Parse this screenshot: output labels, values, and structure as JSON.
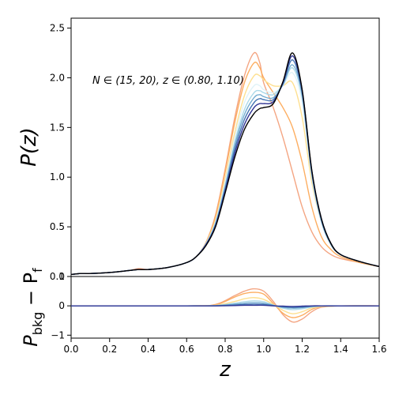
{
  "chart_data": [
    {
      "type": "line",
      "panel": "top",
      "annotation": "N ∈ (15, 20), z ∈ (0.80, 1.10)",
      "ylabel": "P(z)",
      "xlim": [
        0.0,
        1.6
      ],
      "ylim": [
        0.0,
        2.6
      ],
      "yticks": [
        "0.0",
        "0.5",
        "1.0",
        "1.5",
        "2.0",
        "2.5"
      ],
      "yticks_values": [
        0.0,
        0.5,
        1.0,
        1.5,
        2.0,
        2.5
      ],
      "x": [
        0.0,
        0.05,
        0.1,
        0.2,
        0.3,
        0.35,
        0.4,
        0.5,
        0.6,
        0.65,
        0.7,
        0.75,
        0.8,
        0.85,
        0.9,
        0.95,
        0.98,
        1.0,
        1.05,
        1.1,
        1.15,
        1.2,
        1.25,
        1.3,
        1.35,
        1.4,
        1.5,
        1.6
      ],
      "series": [
        {
          "color": "#f4a582",
          "values": [
            0.02,
            0.03,
            0.03,
            0.04,
            0.06,
            0.08,
            0.07,
            0.09,
            0.14,
            0.2,
            0.34,
            0.62,
            1.08,
            1.6,
            2.02,
            2.25,
            2.15,
            1.95,
            1.7,
            1.4,
            1.05,
            0.7,
            0.45,
            0.3,
            0.22,
            0.18,
            0.14,
            0.1
          ]
        },
        {
          "color": "#fdae61",
          "values": [
            0.02,
            0.03,
            0.03,
            0.04,
            0.06,
            0.07,
            0.07,
            0.09,
            0.14,
            0.2,
            0.34,
            0.6,
            1.05,
            1.55,
            1.95,
            2.15,
            2.1,
            2.0,
            1.85,
            1.7,
            1.5,
            1.15,
            0.7,
            0.4,
            0.27,
            0.2,
            0.14,
            0.1
          ]
        },
        {
          "color": "#fee090",
          "values": [
            0.02,
            0.03,
            0.03,
            0.04,
            0.06,
            0.07,
            0.07,
            0.09,
            0.14,
            0.2,
            0.33,
            0.57,
            0.98,
            1.45,
            1.82,
            2.02,
            2.02,
            1.98,
            1.92,
            1.92,
            1.95,
            1.6,
            0.95,
            0.55,
            0.32,
            0.22,
            0.15,
            0.1
          ]
        },
        {
          "color": "#e0f3f8",
          "values": [
            0.02,
            0.03,
            0.03,
            0.04,
            0.06,
            0.07,
            0.07,
            0.09,
            0.14,
            0.2,
            0.33,
            0.55,
            0.95,
            1.4,
            1.75,
            1.92,
            1.92,
            1.88,
            1.85,
            1.92,
            2.05,
            1.75,
            1.0,
            0.55,
            0.32,
            0.22,
            0.15,
            0.1
          ]
        },
        {
          "color": "#abd9e9",
          "values": [
            0.02,
            0.03,
            0.03,
            0.04,
            0.06,
            0.07,
            0.07,
            0.09,
            0.14,
            0.2,
            0.33,
            0.54,
            0.92,
            1.35,
            1.68,
            1.85,
            1.87,
            1.85,
            1.83,
            1.93,
            2.1,
            1.8,
            1.02,
            0.55,
            0.32,
            0.22,
            0.15,
            0.1
          ]
        },
        {
          "color": "#74add1",
          "values": [
            0.02,
            0.03,
            0.03,
            0.04,
            0.06,
            0.07,
            0.07,
            0.09,
            0.14,
            0.2,
            0.32,
            0.53,
            0.9,
            1.32,
            1.63,
            1.8,
            1.83,
            1.81,
            1.8,
            1.93,
            2.13,
            1.83,
            1.04,
            0.56,
            0.32,
            0.22,
            0.15,
            0.1
          ]
        },
        {
          "color": "#4575b4",
          "values": [
            0.02,
            0.03,
            0.03,
            0.04,
            0.06,
            0.07,
            0.07,
            0.09,
            0.14,
            0.2,
            0.32,
            0.52,
            0.88,
            1.28,
            1.58,
            1.75,
            1.79,
            1.78,
            1.78,
            1.94,
            2.18,
            1.85,
            1.05,
            0.57,
            0.33,
            0.22,
            0.15,
            0.1
          ]
        },
        {
          "color": "#313695",
          "values": [
            0.02,
            0.03,
            0.03,
            0.04,
            0.06,
            0.07,
            0.07,
            0.09,
            0.14,
            0.2,
            0.32,
            0.51,
            0.86,
            1.24,
            1.53,
            1.7,
            1.74,
            1.74,
            1.76,
            1.95,
            2.22,
            1.87,
            1.06,
            0.58,
            0.33,
            0.22,
            0.15,
            0.1
          ]
        },
        {
          "color": "#000000",
          "values": [
            0.02,
            0.03,
            0.03,
            0.04,
            0.06,
            0.07,
            0.07,
            0.09,
            0.14,
            0.2,
            0.31,
            0.5,
            0.84,
            1.2,
            1.48,
            1.64,
            1.69,
            1.7,
            1.74,
            1.96,
            2.25,
            1.88,
            1.07,
            0.58,
            0.33,
            0.22,
            0.15,
            0.1
          ]
        }
      ]
    },
    {
      "type": "line",
      "panel": "bottom",
      "xlabel": "z",
      "ylabel": "P_bkg − P_f",
      "ylabel_main": "P",
      "ylabel_sub1": "bkg",
      "ylabel_mid": " − P",
      "ylabel_sub2": "f",
      "xlim": [
        0.0,
        1.6
      ],
      "ylim": [
        -1.1,
        1.0
      ],
      "xticks": [
        "0.0",
        "0.2",
        "0.4",
        "0.6",
        "0.8",
        "1.0",
        "1.2",
        "1.4",
        "1.6"
      ],
      "xticks_values": [
        0.0,
        0.2,
        0.4,
        0.6,
        0.8,
        1.0,
        1.2,
        1.4,
        1.6
      ],
      "yticks": [
        "−1",
        "0"
      ],
      "yticks_values": [
        -1,
        0
      ],
      "top_tick": "1",
      "x": [
        0.0,
        0.6,
        0.75,
        0.85,
        0.9,
        0.95,
        1.0,
        1.05,
        1.1,
        1.15,
        1.2,
        1.25,
        1.3,
        1.4,
        1.6
      ],
      "series": [
        {
          "color": "#f4a582",
          "values": [
            0.0,
            0.0,
            0.05,
            0.35,
            0.5,
            0.58,
            0.5,
            0.15,
            -0.3,
            -0.55,
            -0.45,
            -0.2,
            -0.05,
            0.0,
            0.0
          ]
        },
        {
          "color": "#fdae61",
          "values": [
            0.0,
            0.0,
            0.04,
            0.3,
            0.42,
            0.46,
            0.4,
            0.08,
            -0.25,
            -0.4,
            -0.32,
            -0.12,
            -0.03,
            0.0,
            0.0
          ]
        },
        {
          "color": "#fee090",
          "values": [
            0.0,
            0.0,
            0.02,
            0.15,
            0.24,
            0.28,
            0.22,
            0.05,
            -0.15,
            -0.27,
            -0.2,
            -0.07,
            -0.02,
            0.0,
            0.0
          ]
        },
        {
          "color": "#abd9e9",
          "values": [
            0.0,
            0.0,
            0.01,
            0.09,
            0.14,
            0.17,
            0.14,
            0.03,
            -0.08,
            -0.13,
            -0.1,
            -0.04,
            -0.01,
            0.0,
            0.0
          ]
        },
        {
          "color": "#74add1",
          "values": [
            0.0,
            0.0,
            0.01,
            0.06,
            0.09,
            0.11,
            0.09,
            0.02,
            -0.05,
            -0.08,
            -0.06,
            -0.02,
            0.0,
            0.0,
            0.0
          ]
        },
        {
          "color": "#4575b4",
          "values": [
            0.0,
            0.0,
            0.0,
            0.03,
            0.05,
            0.06,
            0.05,
            0.01,
            -0.03,
            -0.05,
            -0.04,
            -0.01,
            0.0,
            0.0,
            0.0
          ]
        },
        {
          "color": "#313695",
          "values": [
            0.0,
            0.0,
            0.0,
            0.01,
            0.02,
            0.02,
            0.02,
            0.0,
            -0.01,
            -0.02,
            -0.01,
            0.0,
            0.0,
            0.0,
            0.0
          ]
        }
      ]
    }
  ]
}
